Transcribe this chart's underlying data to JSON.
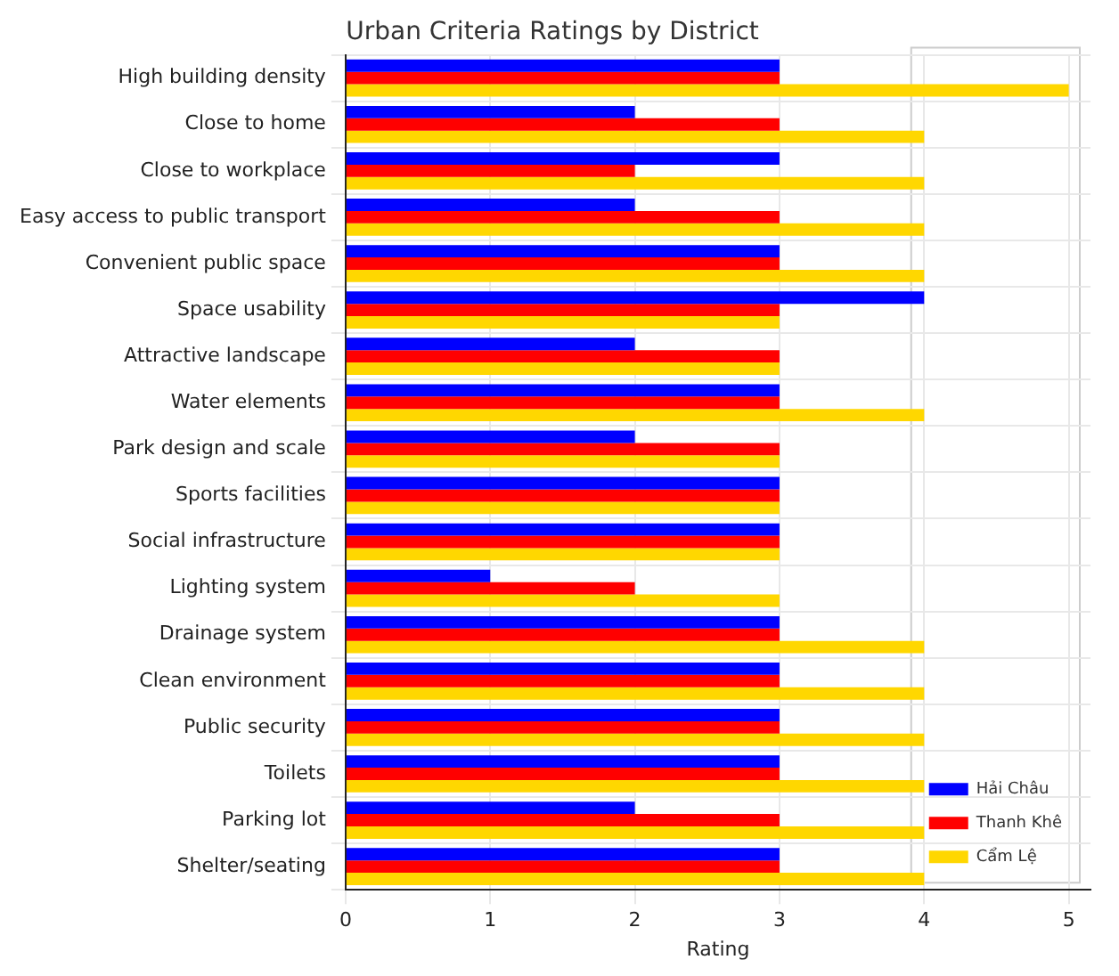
{
  "chart_data": {
    "type": "bar",
    "orientation": "horizontal",
    "title": "Urban Criteria Ratings by District",
    "xlabel": "Rating",
    "categories": [
      "High building density",
      "Close to home",
      "Close to workplace",
      "Easy access to public transport",
      "Convenient public space",
      "Space usability",
      "Attractive landscape",
      "Water elements",
      "Park design and scale",
      "Sports facilities",
      "Social infrastructure",
      "Lighting system",
      "Drainage system",
      "Clean environment",
      "Public security",
      "Toilets",
      "Parking lot",
      "Shelter/seating"
    ],
    "series": [
      {
        "name": "Hải Châu",
        "color": "#0000ff",
        "values": [
          3,
          2,
          3,
          2,
          3,
          4,
          2,
          3,
          2,
          3,
          3,
          1,
          3,
          3,
          3,
          3,
          2,
          3
        ]
      },
      {
        "name": "Thanh Khê",
        "color": "#ff0000",
        "values": [
          3,
          3,
          2,
          3,
          3,
          3,
          3,
          3,
          3,
          3,
          3,
          2,
          3,
          3,
          3,
          3,
          3,
          3
        ]
      },
      {
        "name": "Cẩm Lệ",
        "color": "#ffd700",
        "values": [
          5,
          4,
          4,
          4,
          4,
          3,
          3,
          4,
          3,
          3,
          3,
          3,
          4,
          4,
          4,
          4,
          4,
          4
        ]
      }
    ],
    "xlim": [
      0,
      5.15
    ],
    "xticks": [
      0,
      1,
      2,
      3,
      4,
      5
    ],
    "grid": true,
    "legend": "bottom right"
  }
}
